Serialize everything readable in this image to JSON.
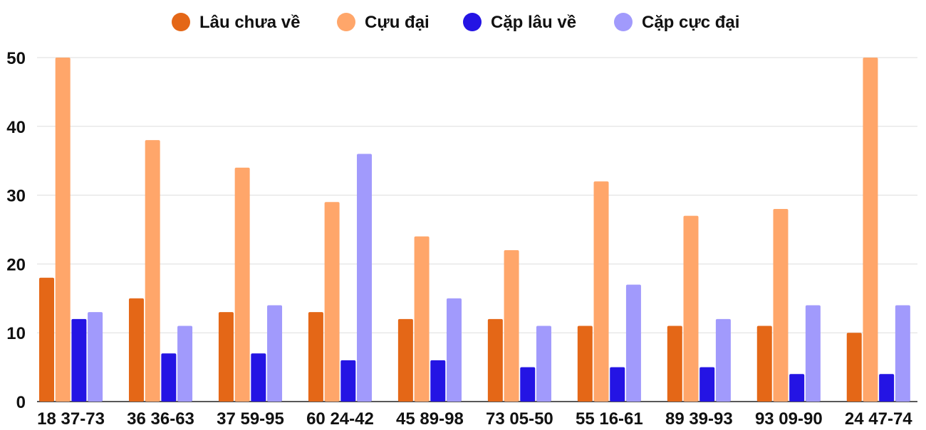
{
  "chart_data": {
    "type": "bar",
    "categories": [
      "18 37-73",
      "36 36-63",
      "37 59-95",
      "60 24-42",
      "45 89-98",
      "73 05-50",
      "55 16-61",
      "89 39-93",
      "93 09-90",
      "24 47-74"
    ],
    "series": [
      {
        "name": "Lâu chưa về",
        "color": "#e46717",
        "values": [
          18,
          15,
          13,
          13,
          12,
          12,
          11,
          11,
          11,
          10
        ]
      },
      {
        "name": "Cựu đại",
        "color": "#ffa66a",
        "values": [
          50,
          38,
          34,
          29,
          24,
          22,
          32,
          27,
          28,
          50
        ]
      },
      {
        "name": "Cặp lâu về",
        "color": "#2414e4",
        "values": [
          12,
          7,
          7,
          6,
          6,
          5,
          5,
          5,
          4,
          4
        ]
      },
      {
        "name": "Cặp cực đại",
        "color": "#a19afc",
        "values": [
          13,
          11,
          14,
          36,
          15,
          11,
          17,
          12,
          14,
          14
        ]
      }
    ],
    "yticks": [
      0,
      10,
      20,
      30,
      40,
      50
    ],
    "ylim": [
      0,
      50
    ],
    "grid": true,
    "legend_position": "top-center",
    "gridline_color": "#dddddd",
    "axis_color": "#222222"
  }
}
